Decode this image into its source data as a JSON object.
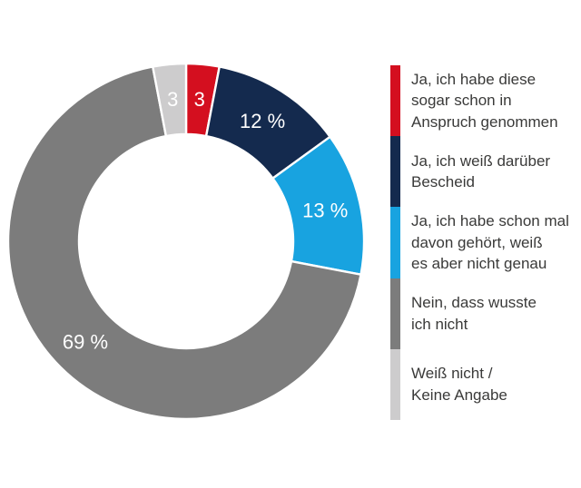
{
  "chart_data": {
    "type": "pie",
    "donut": true,
    "unit": "%",
    "total": 100,
    "legend_position": "right",
    "series": [
      {
        "label": "Ja, ich habe diese sogar schon in Anspruch genommen",
        "value": 3,
        "display": "3",
        "color": "#d40f1f",
        "legend_lines": [
          "Ja, ich habe diese",
          "sogar schon in",
          "Anspruch genommen"
        ]
      },
      {
        "label": "Ja, ich weiß darüber Bescheid",
        "value": 12,
        "display": "12 %",
        "color": "#142a4e",
        "legend_lines": [
          "Ja, ich weiß darüber",
          "Bescheid"
        ]
      },
      {
        "label": "Ja, ich habe schon mal davon gehört, weiß es aber nicht genau",
        "value": 13,
        "display": "13 %",
        "color": "#18a3e0",
        "legend_lines": [
          "Ja, ich habe schon mal",
          "davon gehört, weiß",
          "es aber nicht genau"
        ]
      },
      {
        "label": "Nein, dass wusste ich nicht",
        "value": 69,
        "display": "69 %",
        "color": "#7c7c7c",
        "legend_lines": [
          "Nein, dass wusste",
          "ich nicht"
        ]
      },
      {
        "label": "Weiß nicht / Keine Angabe",
        "value": 3,
        "display": "3",
        "color": "#cdcccd",
        "legend_lines": [
          "Weiß nicht /",
          "Keine Angabe"
        ]
      }
    ],
    "label_text_color": "#ffffff",
    "legend_text_color": "#3a3a39"
  }
}
